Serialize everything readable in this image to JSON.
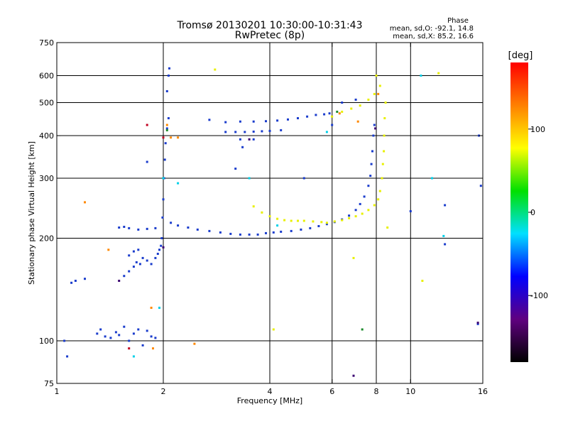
{
  "chart_data": {
    "type": "scatter",
    "title": "Tromsø 20130201 10:30:00-10:31:43",
    "subtitle": "RwPretec (8p)",
    "xlabel": "Frequency [MHz]",
    "ylabel": "Stationary phase Virtual Height [km]",
    "x_scale": "log",
    "y_scale": "log",
    "xlim": [
      1,
      16
    ],
    "ylim": [
      75,
      750
    ],
    "x_ticks": [
      1,
      2,
      4,
      6,
      8,
      10,
      16
    ],
    "y_ticks": [
      75,
      100,
      200,
      300,
      400,
      500,
      600,
      750
    ],
    "x_gridlines": [
      2,
      4,
      6,
      8,
      10
    ],
    "y_gridlines": [
      100,
      200,
      300,
      400,
      500,
      600
    ],
    "grid": true,
    "phase_legend": {
      "heading": "Phase",
      "line_o": "mean, sd,O: -92.1, 14.8",
      "line_x": "mean, sd,X: 85.2, 16.6"
    },
    "colorbar": {
      "label": "[deg]",
      "range": [
        -180,
        180
      ],
      "ticks": [
        100,
        0,
        -100
      ],
      "colors": [
        "#ff0000",
        "#ff8000",
        "#ffff00",
        "#00e000",
        "#00e0ff",
        "#0000ff",
        "#600080",
        "#000000"
      ]
    },
    "series": [
      {
        "color": "#1a3ccc",
        "points": [
          [
            1.05,
            100
          ],
          [
            1.07,
            90
          ],
          [
            1.1,
            148
          ],
          [
            1.13,
            150
          ],
          [
            1.2,
            152
          ],
          [
            1.3,
            105
          ],
          [
            1.33,
            108
          ],
          [
            1.37,
            103
          ],
          [
            1.42,
            102
          ],
          [
            1.47,
            106
          ],
          [
            1.5,
            104
          ],
          [
            1.55,
            110
          ],
          [
            1.6,
            100
          ],
          [
            1.65,
            105
          ],
          [
            1.7,
            108
          ],
          [
            1.75,
            97
          ],
          [
            1.8,
            107
          ],
          [
            1.85,
            103
          ],
          [
            1.9,
            102
          ],
          [
            1.55,
            155
          ],
          [
            1.6,
            160
          ],
          [
            1.65,
            165
          ],
          [
            1.68,
            170
          ],
          [
            1.72,
            168
          ],
          [
            1.75,
            175
          ],
          [
            1.8,
            172
          ],
          [
            1.85,
            168
          ],
          [
            1.9,
            175
          ],
          [
            1.93,
            180
          ],
          [
            1.95,
            185
          ],
          [
            1.97,
            190
          ],
          [
            1.6,
            178
          ],
          [
            1.7,
            185
          ],
          [
            1.65,
            183
          ],
          [
            1.98,
            200
          ],
          [
            1.99,
            230
          ],
          [
            2.0,
            260
          ],
          [
            2.01,
            300
          ],
          [
            2.02,
            340
          ],
          [
            2.03,
            380
          ],
          [
            2.05,
            420
          ],
          [
            2.07,
            450
          ],
          [
            2.05,
            540
          ],
          [
            2.08,
            630
          ],
          [
            2.07,
            600
          ],
          [
            1.5,
            215
          ],
          [
            1.55,
            216
          ],
          [
            1.6,
            214
          ],
          [
            1.7,
            212
          ],
          [
            1.8,
            213
          ],
          [
            1.9,
            214
          ],
          [
            2.1,
            222
          ],
          [
            2.2,
            218
          ],
          [
            2.35,
            215
          ],
          [
            2.5,
            212
          ],
          [
            2.7,
            210
          ],
          [
            2.9,
            208
          ],
          [
            3.1,
            206
          ],
          [
            3.3,
            205
          ],
          [
            3.5,
            205
          ],
          [
            3.7,
            205
          ],
          [
            3.9,
            207
          ],
          [
            4.1,
            208
          ],
          [
            4.3,
            209
          ],
          [
            4.6,
            210
          ],
          [
            4.9,
            212
          ],
          [
            5.2,
            214
          ],
          [
            5.5,
            217
          ],
          [
            5.8,
            220
          ],
          [
            6.1,
            223
          ],
          [
            6.4,
            227
          ],
          [
            6.7,
            233
          ],
          [
            7.0,
            242
          ],
          [
            7.2,
            252
          ],
          [
            7.4,
            265
          ],
          [
            7.6,
            285
          ],
          [
            7.7,
            305
          ],
          [
            7.75,
            330
          ],
          [
            7.8,
            360
          ],
          [
            7.85,
            400
          ],
          [
            7.9,
            430
          ],
          [
            2.7,
            445
          ],
          [
            3.0,
            438
          ],
          [
            3.3,
            440
          ],
          [
            3.6,
            440
          ],
          [
            3.9,
            441
          ],
          [
            4.2,
            443
          ],
          [
            4.5,
            446
          ],
          [
            4.8,
            450
          ],
          [
            5.1,
            455
          ],
          [
            5.4,
            460
          ],
          [
            5.7,
            462
          ],
          [
            5.9,
            465
          ],
          [
            3.0,
            410
          ],
          [
            3.2,
            410
          ],
          [
            3.4,
            410
          ],
          [
            3.6,
            411
          ],
          [
            3.8,
            412
          ],
          [
            4.0,
            413
          ],
          [
            4.3,
            415
          ],
          [
            1.8,
            335
          ],
          [
            3.2,
            320
          ],
          [
            3.3,
            390
          ],
          [
            3.6,
            390
          ],
          [
            5.0,
            300
          ],
          [
            6.0,
            430
          ],
          [
            6.4,
            500
          ],
          [
            7.0,
            510
          ],
          [
            12.5,
            250
          ],
          [
            12.5,
            192
          ],
          [
            15.6,
            400
          ],
          [
            15.8,
            285
          ],
          [
            15.5,
            112
          ],
          [
            10.0,
            240
          ],
          [
            3.35,
            370
          ]
        ]
      },
      {
        "color": "#e8f000",
        "points": [
          [
            3.6,
            248
          ],
          [
            3.8,
            238
          ],
          [
            4.0,
            232
          ],
          [
            4.2,
            228
          ],
          [
            4.4,
            226
          ],
          [
            4.6,
            225
          ],
          [
            4.8,
            225
          ],
          [
            5.0,
            225
          ],
          [
            5.3,
            224
          ],
          [
            5.6,
            223
          ],
          [
            5.8,
            222
          ],
          [
            6.1,
            224
          ],
          [
            6.4,
            226
          ],
          [
            6.7,
            229
          ],
          [
            7.0,
            232
          ],
          [
            7.3,
            236
          ],
          [
            7.6,
            242
          ],
          [
            7.9,
            250
          ],
          [
            8.1,
            260
          ],
          [
            8.2,
            275
          ],
          [
            8.3,
            300
          ],
          [
            8.35,
            330
          ],
          [
            8.4,
            360
          ],
          [
            8.42,
            400
          ],
          [
            8.45,
            450
          ],
          [
            8.5,
            500
          ],
          [
            6.0,
            455
          ],
          [
            6.4,
            470
          ],
          [
            6.8,
            480
          ],
          [
            7.2,
            490
          ],
          [
            7.6,
            510
          ],
          [
            7.9,
            530
          ],
          [
            8.2,
            560
          ],
          [
            8.0,
            600
          ],
          [
            2.8,
            625
          ],
          [
            4.1,
            108
          ],
          [
            6.9,
            175
          ],
          [
            10.8,
            150
          ],
          [
            12.0,
            610
          ],
          [
            8.6,
            215
          ]
        ]
      },
      {
        "color": "#ff8800",
        "points": [
          [
            1.4,
            185
          ],
          [
            1.87,
            95
          ],
          [
            2.05,
            430
          ],
          [
            2.1,
            395
          ],
          [
            2.2,
            395
          ],
          [
            2.45,
            98
          ],
          [
            8.1,
            530
          ],
          [
            6.3,
            465
          ],
          [
            7.1,
            440
          ],
          [
            1.2,
            255
          ],
          [
            1.85,
            125
          ]
        ]
      },
      {
        "color": "#00d0e8",
        "points": [
          [
            1.65,
            90
          ],
          [
            2.2,
            290
          ],
          [
            3.5,
            300
          ],
          [
            4.2,
            218
          ],
          [
            5.8,
            410
          ],
          [
            10.7,
            600
          ],
          [
            11.5,
            300
          ],
          [
            12.4,
            203
          ],
          [
            2.0,
            300
          ],
          [
            1.95,
            125
          ]
        ]
      },
      {
        "color": "#1a8a2a",
        "points": [
          [
            2.05,
            415
          ],
          [
            7.3,
            108
          ],
          [
            6.2,
            470
          ]
        ]
      },
      {
        "color": "#c00020",
        "points": [
          [
            1.6,
            95
          ],
          [
            1.8,
            430
          ],
          [
            2.0,
            395
          ]
        ]
      },
      {
        "color": "#3a0070",
        "points": [
          [
            3.5,
            390
          ],
          [
            2.0,
            188
          ],
          [
            1.5,
            150
          ],
          [
            7.95,
            420
          ],
          [
            15.5,
            113
          ],
          [
            6.9,
            79
          ]
        ]
      }
    ]
  }
}
